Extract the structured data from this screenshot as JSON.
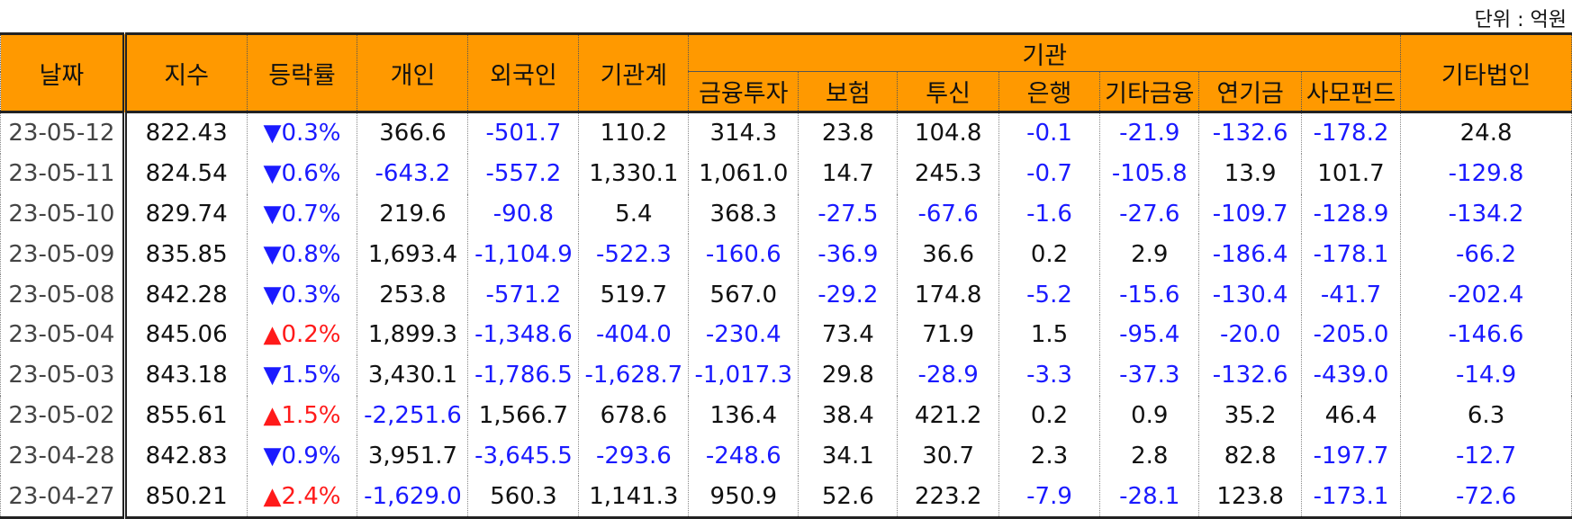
{
  "unit_label": "단위 : 억원",
  "headers": {
    "date": "날짜",
    "index": "지수",
    "change": "등락률",
    "individual": "개인",
    "foreign": "외국인",
    "institution_total": "기관계",
    "institution_group": "기관",
    "institution_sub": [
      "금융투자",
      "보험",
      "투신",
      "은행",
      "기타금융",
      "연기금",
      "사모펀드"
    ],
    "other_corp": "기타법인"
  },
  "rows": [
    {
      "date": "23-05-12",
      "index": "822.43",
      "dir": "down",
      "change": "0.3%",
      "values": [
        "366.6",
        "-501.7",
        "110.2",
        "314.3",
        "23.8",
        "104.8",
        "-0.1",
        "-21.9",
        "-132.6",
        "-178.2",
        "24.8"
      ]
    },
    {
      "date": "23-05-11",
      "index": "824.54",
      "dir": "down",
      "change": "0.6%",
      "values": [
        "-643.2",
        "-557.2",
        "1,330.1",
        "1,061.0",
        "14.7",
        "245.3",
        "-0.7",
        "-105.8",
        "13.9",
        "101.7",
        "-129.8"
      ]
    },
    {
      "date": "23-05-10",
      "index": "829.74",
      "dir": "down",
      "change": "0.7%",
      "values": [
        "219.6",
        "-90.8",
        "5.4",
        "368.3",
        "-27.5",
        "-67.6",
        "-1.6",
        "-27.6",
        "-109.7",
        "-128.9",
        "-134.2"
      ]
    },
    {
      "date": "23-05-09",
      "index": "835.85",
      "dir": "down",
      "change": "0.8%",
      "values": [
        "1,693.4",
        "-1,104.9",
        "-522.3",
        "-160.6",
        "-36.9",
        "36.6",
        "0.2",
        "2.9",
        "-186.4",
        "-178.1",
        "-66.2"
      ]
    },
    {
      "date": "23-05-08",
      "index": "842.28",
      "dir": "down",
      "change": "0.3%",
      "values": [
        "253.8",
        "-571.2",
        "519.7",
        "567.0",
        "-29.2",
        "174.8",
        "-5.2",
        "-15.6",
        "-130.4",
        "-41.7",
        "-202.4"
      ]
    },
    {
      "date": "23-05-04",
      "index": "845.06",
      "dir": "up",
      "change": "0.2%",
      "values": [
        "1,899.3",
        "-1,348.6",
        "-404.0",
        "-230.4",
        "73.4",
        "71.9",
        "1.5",
        "-95.4",
        "-20.0",
        "-205.0",
        "-146.6"
      ]
    },
    {
      "date": "23-05-03",
      "index": "843.18",
      "dir": "down",
      "change": "1.5%",
      "values": [
        "3,430.1",
        "-1,786.5",
        "-1,628.7",
        "-1,017.3",
        "29.8",
        "-28.9",
        "-3.3",
        "-37.3",
        "-132.6",
        "-439.0",
        "-14.9"
      ]
    },
    {
      "date": "23-05-02",
      "index": "855.61",
      "dir": "up",
      "change": "1.5%",
      "values": [
        "-2,251.6",
        "1,566.7",
        "678.6",
        "136.4",
        "38.4",
        "421.2",
        "0.2",
        "0.9",
        "35.2",
        "46.4",
        "6.3"
      ]
    },
    {
      "date": "23-04-28",
      "index": "842.83",
      "dir": "down",
      "change": "0.9%",
      "values": [
        "3,951.7",
        "-3,645.5",
        "-293.6",
        "-248.6",
        "34.1",
        "30.7",
        "2.3",
        "2.8",
        "82.8",
        "-197.7",
        "-12.7"
      ]
    },
    {
      "date": "23-04-27",
      "index": "850.21",
      "dir": "up",
      "change": "2.4%",
      "values": [
        "-1,629.0",
        "560.3",
        "1,141.3",
        "950.9",
        "52.6",
        "223.2",
        "-7.9",
        "-28.1",
        "123.8",
        "-173.1",
        "-72.6"
      ]
    }
  ],
  "colors": {
    "header_bg": "#ff9900",
    "negative": "#1a1aff",
    "up": "#ff1a1a"
  }
}
